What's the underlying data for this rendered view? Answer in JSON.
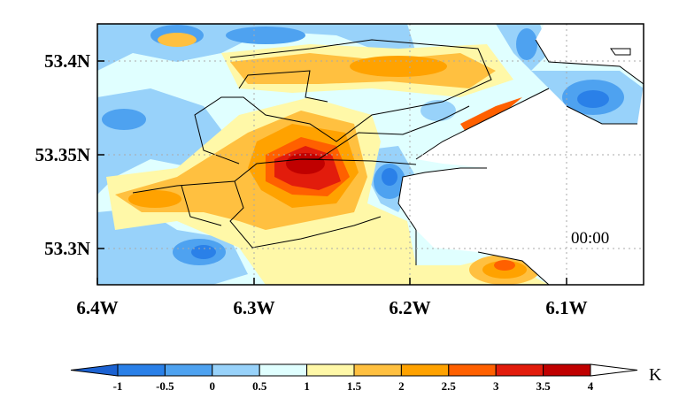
{
  "map": {
    "x_ticks": [
      "6.4W",
      "6.3W",
      "6.2W",
      "6.1W"
    ],
    "y_ticks": [
      "53.4N",
      "53.35N",
      "53.3N"
    ],
    "time_label": "00:00",
    "grid": "dotted"
  },
  "colorbar": {
    "unit": "K",
    "labels": [
      "-1",
      "-0.5",
      "0",
      "0.5",
      "1",
      "1.5",
      "2",
      "2.5",
      "3",
      "3.5",
      "4"
    ],
    "under_color": "#1c62d2",
    "over_color": "#ffffff",
    "colors": [
      "#2a80e8",
      "#4ea2f0",
      "#98d2fa",
      "#e0ffff",
      "#fff8a8",
      "#ffc040",
      "#ffa200",
      "#ff6000",
      "#e21c0c",
      "#c00000"
    ]
  }
}
